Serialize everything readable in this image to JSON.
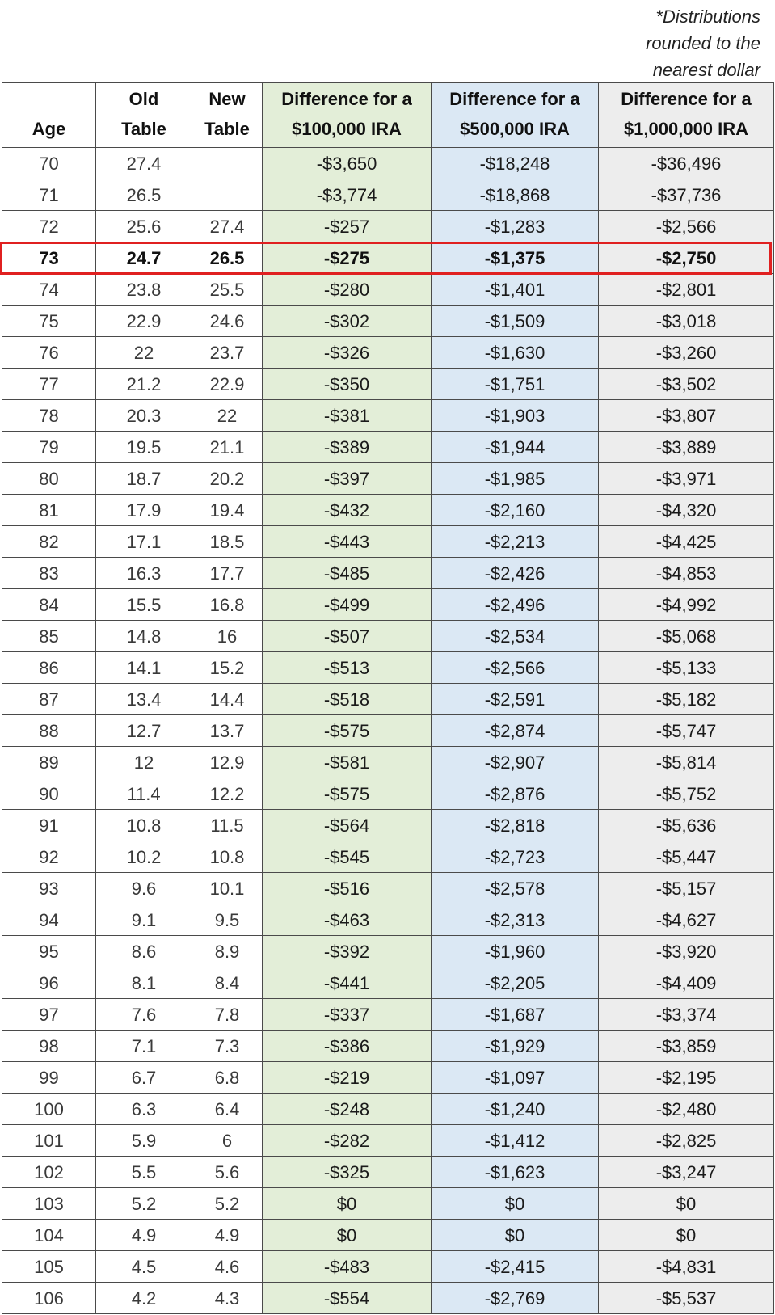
{
  "note": [
    "*Distributions",
    "rounded to the",
    "nearest dollar"
  ],
  "headers": {
    "age": "Age",
    "old": [
      "Old",
      "Table"
    ],
    "new": [
      "New",
      "Table"
    ],
    "d1": [
      "Difference for a",
      "$100,000 IRA"
    ],
    "d2": [
      "Difference for a",
      "$500,000 IRA"
    ],
    "d3": [
      "Difference for a",
      "$1,000,000 IRA"
    ]
  },
  "highlighted_age": "73",
  "rows": [
    {
      "age": "70",
      "old": "27.4",
      "new": "",
      "d1": "-$3,650",
      "d2": "-$18,248",
      "d3": "-$36,496"
    },
    {
      "age": "71",
      "old": "26.5",
      "new": "",
      "d1": "-$3,774",
      "d2": "-$18,868",
      "d3": "-$37,736"
    },
    {
      "age": "72",
      "old": "25.6",
      "new": "27.4",
      "d1": "-$257",
      "d2": "-$1,283",
      "d3": "-$2,566"
    },
    {
      "age": "73",
      "old": "24.7",
      "new": "26.5",
      "d1": "-$275",
      "d2": "-$1,375",
      "d3": "-$2,750"
    },
    {
      "age": "74",
      "old": "23.8",
      "new": "25.5",
      "d1": "-$280",
      "d2": "-$1,401",
      "d3": "-$2,801"
    },
    {
      "age": "75",
      "old": "22.9",
      "new": "24.6",
      "d1": "-$302",
      "d2": "-$1,509",
      "d3": "-$3,018"
    },
    {
      "age": "76",
      "old": "22",
      "new": "23.7",
      "d1": "-$326",
      "d2": "-$1,630",
      "d3": "-$3,260"
    },
    {
      "age": "77",
      "old": "21.2",
      "new": "22.9",
      "d1": "-$350",
      "d2": "-$1,751",
      "d3": "-$3,502"
    },
    {
      "age": "78",
      "old": "20.3",
      "new": "22",
      "d1": "-$381",
      "d2": "-$1,903",
      "d3": "-$3,807"
    },
    {
      "age": "79",
      "old": "19.5",
      "new": "21.1",
      "d1": "-$389",
      "d2": "-$1,944",
      "d3": "-$3,889"
    },
    {
      "age": "80",
      "old": "18.7",
      "new": "20.2",
      "d1": "-$397",
      "d2": "-$1,985",
      "d3": "-$3,971"
    },
    {
      "age": "81",
      "old": "17.9",
      "new": "19.4",
      "d1": "-$432",
      "d2": "-$2,160",
      "d3": "-$4,320"
    },
    {
      "age": "82",
      "old": "17.1",
      "new": "18.5",
      "d1": "-$443",
      "d2": "-$2,213",
      "d3": "-$4,425"
    },
    {
      "age": "83",
      "old": "16.3",
      "new": "17.7",
      "d1": "-$485",
      "d2": "-$2,426",
      "d3": "-$4,853"
    },
    {
      "age": "84",
      "old": "15.5",
      "new": "16.8",
      "d1": "-$499",
      "d2": "-$2,496",
      "d3": "-$4,992"
    },
    {
      "age": "85",
      "old": "14.8",
      "new": "16",
      "d1": "-$507",
      "d2": "-$2,534",
      "d3": "-$5,068"
    },
    {
      "age": "86",
      "old": "14.1",
      "new": "15.2",
      "d1": "-$513",
      "d2": "-$2,566",
      "d3": "-$5,133"
    },
    {
      "age": "87",
      "old": "13.4",
      "new": "14.4",
      "d1": "-$518",
      "d2": "-$2,591",
      "d3": "-$5,182"
    },
    {
      "age": "88",
      "old": "12.7",
      "new": "13.7",
      "d1": "-$575",
      "d2": "-$2,874",
      "d3": "-$5,747"
    },
    {
      "age": "89",
      "old": "12",
      "new": "12.9",
      "d1": "-$581",
      "d2": "-$2,907",
      "d3": "-$5,814"
    },
    {
      "age": "90",
      "old": "11.4",
      "new": "12.2",
      "d1": "-$575",
      "d2": "-$2,876",
      "d3": "-$5,752"
    },
    {
      "age": "91",
      "old": "10.8",
      "new": "11.5",
      "d1": "-$564",
      "d2": "-$2,818",
      "d3": "-$5,636"
    },
    {
      "age": "92",
      "old": "10.2",
      "new": "10.8",
      "d1": "-$545",
      "d2": "-$2,723",
      "d3": "-$5,447"
    },
    {
      "age": "93",
      "old": "9.6",
      "new": "10.1",
      "d1": "-$516",
      "d2": "-$2,578",
      "d3": "-$5,157"
    },
    {
      "age": "94",
      "old": "9.1",
      "new": "9.5",
      "d1": "-$463",
      "d2": "-$2,313",
      "d3": "-$4,627"
    },
    {
      "age": "95",
      "old": "8.6",
      "new": "8.9",
      "d1": "-$392",
      "d2": "-$1,960",
      "d3": "-$3,920"
    },
    {
      "age": "96",
      "old": "8.1",
      "new": "8.4",
      "d1": "-$441",
      "d2": "-$2,205",
      "d3": "-$4,409"
    },
    {
      "age": "97",
      "old": "7.6",
      "new": "7.8",
      "d1": "-$337",
      "d2": "-$1,687",
      "d3": "-$3,374"
    },
    {
      "age": "98",
      "old": "7.1",
      "new": "7.3",
      "d1": "-$386",
      "d2": "-$1,929",
      "d3": "-$3,859"
    },
    {
      "age": "99",
      "old": "6.7",
      "new": "6.8",
      "d1": "-$219",
      "d2": "-$1,097",
      "d3": "-$2,195"
    },
    {
      "age": "100",
      "old": "6.3",
      "new": "6.4",
      "d1": "-$248",
      "d2": "-$1,240",
      "d3": "-$2,480"
    },
    {
      "age": "101",
      "old": "5.9",
      "new": "6",
      "d1": "-$282",
      "d2": "-$1,412",
      "d3": "-$2,825"
    },
    {
      "age": "102",
      "old": "5.5",
      "new": "5.6",
      "d1": "-$325",
      "d2": "-$1,623",
      "d3": "-$3,247"
    },
    {
      "age": "103",
      "old": "5.2",
      "new": "5.2",
      "d1": "$0",
      "d2": "$0",
      "d3": "$0"
    },
    {
      "age": "104",
      "old": "4.9",
      "new": "4.9",
      "d1": "$0",
      "d2": "$0",
      "d3": "$0"
    },
    {
      "age": "105",
      "old": "4.5",
      "new": "4.6",
      "d1": "-$483",
      "d2": "-$2,415",
      "d3": "-$4,831"
    },
    {
      "age": "106",
      "old": "4.2",
      "new": "4.3",
      "d1": "-$554",
      "d2": "-$2,769",
      "d3": "-$5,537"
    }
  ]
}
